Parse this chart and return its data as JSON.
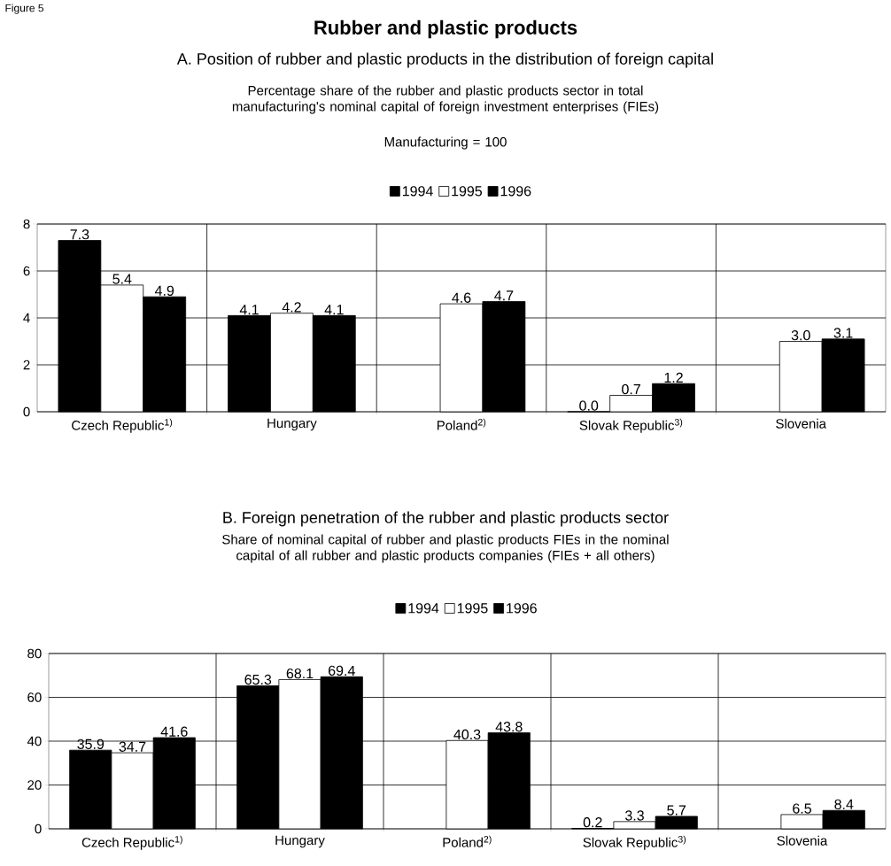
{
  "chart_data": [
    {
      "type": "bar",
      "title": "Rubber and plastic products",
      "subtitle": "A. Position of rubber and plastic products in the distribution of foreign capital",
      "annotations": [
        "Figure 5",
        "Percentage share of the rubber and plastic products sector in total manufacturing's nominal capital of foreign investment enterprises (FIEs)",
        "Manufacturing = 100"
      ],
      "categories": [
        "Czech Republic$^{1)}$",
        "Hungary",
        "Poland$^{2)}$",
        "Slovak Republic$^{3)}$",
        "Slovenia"
      ],
      "series": [
        {
          "name": "1994",
          "color": "#000000",
          "values": [
            7.3,
            4.1,
            null,
            0,
            null
          ],
          "value_labels": [
            "7.3",
            "4.1",
            null,
            "0.0",
            null
          ]
        },
        {
          "name": "1995",
          "color": "#ffffff",
          "values": [
            5.4,
            4.2,
            4.6,
            0.7,
            3
          ],
          "value_labels": [
            "5.4",
            "4.2",
            "4.6",
            "0.7",
            "3.0"
          ]
        },
        {
          "name": "1996",
          "color": "#000000",
          "values": [
            4.9,
            4.1,
            4.7,
            1.2,
            3.1
          ],
          "value_labels": [
            "4.9",
            "4.1",
            "4.7",
            "1.2",
            "3.1"
          ]
        }
      ],
      "ylim": [
        0,
        8
      ],
      "yticks": [
        0,
        2,
        4,
        6,
        8
      ],
      "grid": true,
      "legend": "top"
    },
    {
      "type": "bar",
      "title": "B. Foreign penetration of the rubber and plastic products sector",
      "subtitle": "Share of nominal capital of rubber and plastic products FIEs in the nominal capital of all rubber and plastic products companies (FIEs + all others)",
      "categories": [
        "Czech Republic$^{1)}$",
        "Hungary",
        "Poland$^{2)}$",
        "Slovak Republic$^{3)}$",
        "Slovenia"
      ],
      "series": [
        {
          "name": "1994",
          "color": "#000000",
          "values": [
            35.9,
            65.3,
            null,
            0.2,
            null
          ],
          "value_labels": [
            "35.9",
            "65.3",
            null,
            "0.2",
            null
          ]
        },
        {
          "name": "1995",
          "color": "#ffffff",
          "values": [
            34.7,
            68.1,
            40.3,
            3.3,
            6.5
          ],
          "value_labels": [
            "34.7",
            "68.1",
            "40.3",
            "3.3",
            "6.5"
          ]
        },
        {
          "name": "1996",
          "color": "#000000",
          "values": [
            41.6,
            69.4,
            43.8,
            5.7,
            8.4
          ],
          "value_labels": [
            "41.6",
            "69.4",
            "43.8",
            "5.7",
            "8.4"
          ]
        }
      ],
      "ylim": [
        0,
        80
      ],
      "yticks": [
        0,
        20,
        40,
        60,
        80
      ],
      "grid": true,
      "legend": "top"
    }
  ]
}
